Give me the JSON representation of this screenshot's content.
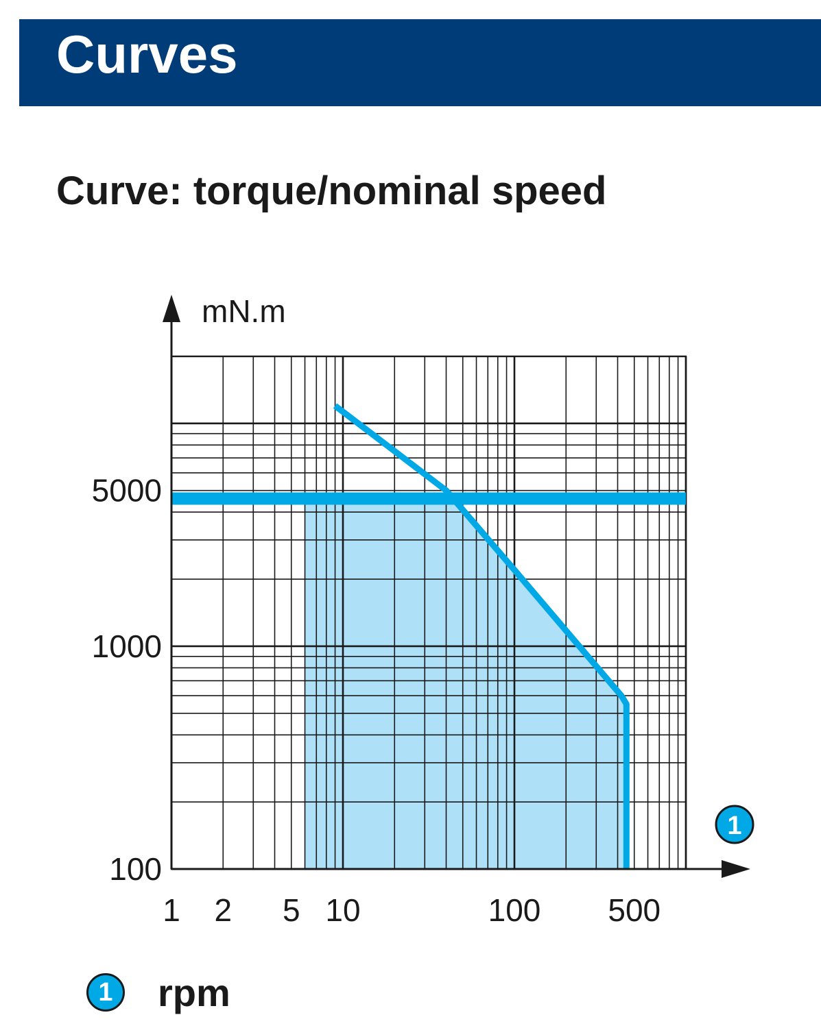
{
  "header": {
    "title": "Curves"
  },
  "section": {
    "subtitle": "Curve: torque/nominal speed"
  },
  "legend": {
    "marker": "1",
    "label": "rpm"
  },
  "chart_data": {
    "type": "line",
    "title": "",
    "xlabel_marker": "1",
    "ylabel": "mN.m",
    "x_scale": "log",
    "y_scale": "log",
    "xlim": [
      1,
      1000
    ],
    "ylim": [
      100,
      20000
    ],
    "x_ticks": [
      {
        "value": 1,
        "label": "1"
      },
      {
        "value": 2,
        "label": "2"
      },
      {
        "value": 5,
        "label": "5"
      },
      {
        "value": 10,
        "label": "10"
      },
      {
        "value": 100,
        "label": "100"
      },
      {
        "value": 500,
        "label": "500"
      }
    ],
    "y_ticks": [
      {
        "value": 100,
        "label": "100"
      },
      {
        "value": 1000,
        "label": "1000"
      },
      {
        "value": 5000,
        "label": "5000"
      }
    ],
    "grid": true,
    "colors": {
      "curve": "#00a8e6",
      "area": "#aee1f7",
      "grid": "#1a1a1a"
    },
    "series": [
      {
        "kind": "torque-limit",
        "x": [
          1,
          1000
        ],
        "y": [
          4600,
          4600
        ]
      },
      {
        "kind": "speed-curve",
        "x": [
          9,
          40,
          100,
          420,
          450,
          450
        ],
        "y": [
          12000,
          5000,
          2200,
          600,
          550,
          100
        ]
      }
    ],
    "operating_region": {
      "x": [
        6,
        6,
        1000,
        1000
      ],
      "y": [
        100,
        4600,
        4600,
        100
      ],
      "bounded_by": "speed-curve"
    }
  }
}
